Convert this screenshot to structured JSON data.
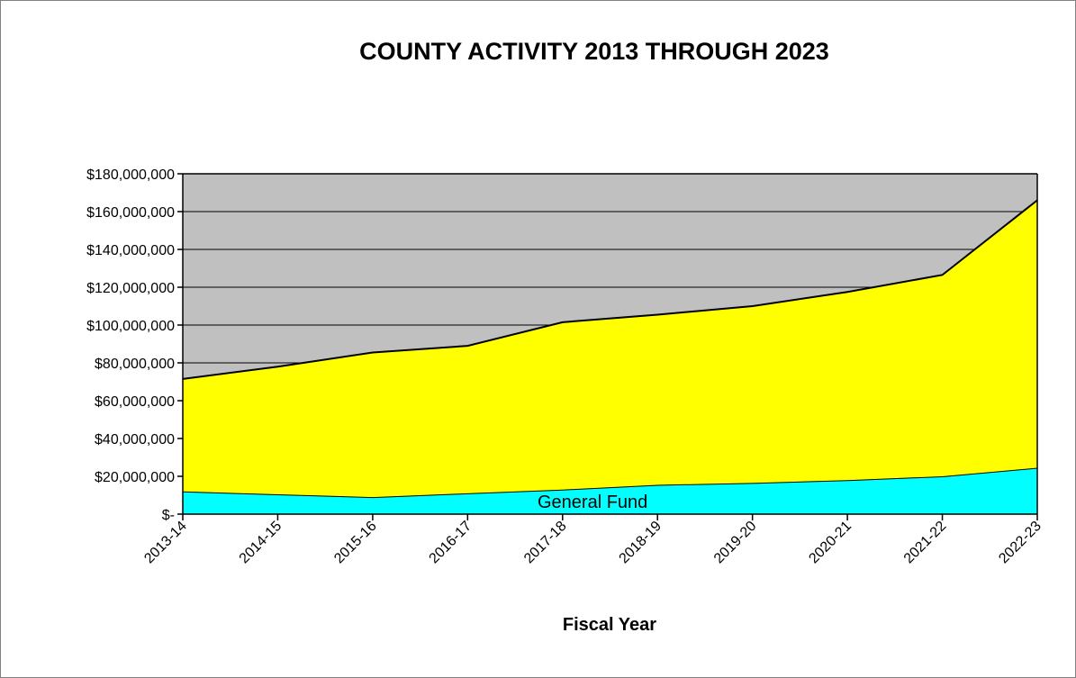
{
  "chart_data": {
    "type": "area",
    "stacked": true,
    "title": "COUNTY ACTIVITY 2013 THROUGH 2023",
    "xlabel": "Fiscal Year",
    "ylabel": "",
    "ylim": [
      0,
      180000000
    ],
    "grid": true,
    "legend": "none",
    "plot_background": "#C0C0C0",
    "categories": [
      "2013-14",
      "2014-15",
      "2015-16",
      "2016-17",
      "2017-18",
      "2018-19",
      "2019-20",
      "2020-21",
      "2021-22",
      "2022-23"
    ],
    "y_tick_values": [
      0,
      20000000,
      40000000,
      60000000,
      80000000,
      100000000,
      120000000,
      140000000,
      160000000,
      180000000
    ],
    "y_tick_labels": [
      "$-",
      "$20,000,000",
      "$40,000,000",
      "$60,000,000",
      "$80,000,000",
      "$100,000,000",
      "$120,000,000",
      "$140,000,000",
      "$160,000,000",
      "$180,000,000"
    ],
    "series": [
      {
        "color": "#00FFFF",
        "values": [
          12000000,
          10500000,
          9000000,
          11000000,
          13000000,
          15500000,
          16500000,
          18000000,
          20000000,
          24500000
        ]
      },
      {
        "color": "#FFFF00",
        "values": [
          59500000,
          67500000,
          76500000,
          78000000,
          88500000,
          90000000,
          93500000,
          99500000,
          106500000,
          141500000
        ]
      }
    ],
    "annotations": [
      {
        "text": "General Fund"
      }
    ]
  }
}
